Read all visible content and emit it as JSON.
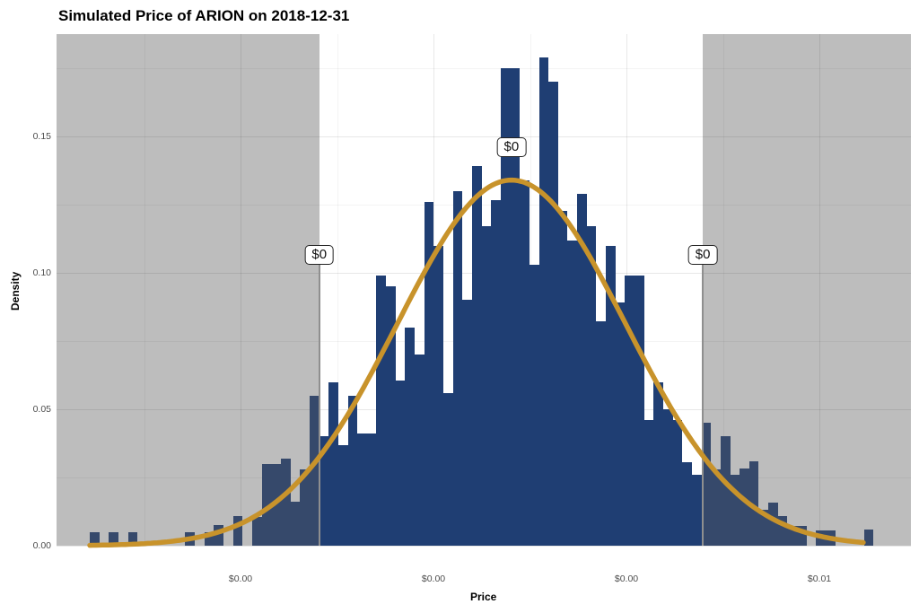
{
  "chart_data": {
    "type": "histogram",
    "title": "Simulated Price of ARION on 2018-12-31",
    "xlabel": "Price",
    "ylabel": "Density",
    "xlim": [
      0.000116,
      0.011186
    ],
    "ylim": [
      0,
      0.1875
    ],
    "grid": "major+minor",
    "x_ticks": [
      {
        "value": 0.0025,
        "label": "$0.00"
      },
      {
        "value": 0.005,
        "label": "$0.00"
      },
      {
        "value": 0.0075,
        "label": "$0.00"
      },
      {
        "value": 0.01,
        "label": "$0.01"
      }
    ],
    "x_minor_ticks": [
      0.00125,
      0.00375,
      0.00625,
      0.00875
    ],
    "y_ticks": [
      {
        "value": 0.0,
        "label": "0.00"
      },
      {
        "value": 0.05,
        "label": "0.05"
      },
      {
        "value": 0.1,
        "label": "0.10"
      },
      {
        "value": 0.15,
        "label": "0.15"
      }
    ],
    "y_minor_ticks": [
      0.025,
      0.075,
      0.125,
      0.175
    ],
    "histogram": {
      "bin_start": 0.000546,
      "bin_width": 0.00012384,
      "densities": [
        0.005,
        0,
        0.005,
        0,
        0.005,
        0,
        0,
        0,
        0,
        0,
        0.005,
        0,
        0.005,
        0.0075,
        0,
        0.011,
        0,
        0.0105,
        0.03,
        0.03,
        0.032,
        0.016,
        0.028,
        0.055,
        0.04,
        0.06,
        0.037,
        0.055,
        0.041,
        0.041,
        0.099,
        0.095,
        0.0605,
        0.08,
        0.07,
        0.126,
        0.11,
        0.056,
        0.13,
        0.09,
        0.139,
        0.117,
        0.1265,
        0.175,
        0.175,
        0.134,
        0.103,
        0.179,
        0.17,
        0.1227,
        0.112,
        0.129,
        0.117,
        0.0824,
        0.11,
        0.089,
        0.099,
        0.099,
        0.046,
        0.06,
        0.05,
        0.046,
        0.0305,
        0.026,
        0.045,
        0.028,
        0.04,
        0.026,
        0.0284,
        0.031,
        0.013,
        0.0158,
        0.011,
        0.0072,
        0.0072,
        0,
        0.0055,
        0.0055,
        0,
        0,
        0,
        0.006,
        0,
        0,
        0
      ]
    },
    "normal_curve": {
      "mean": 0.00601,
      "sd": 0.00148,
      "peak_density": 0.134,
      "x_start": 0.000546,
      "x_end": 0.010569
    },
    "ci": {
      "lower": 0.00352,
      "upper": 0.00849,
      "lower_label": "$0",
      "upper_label": "$0",
      "mean_label": "$0"
    },
    "colors": {
      "bar": "#1f3e73",
      "bar_shaded": "#36496b",
      "shade": "#bdbdbd",
      "curve": "#c8932b",
      "marker_line": "#8f8f8f",
      "tick_text": "#4d4d4d"
    }
  }
}
